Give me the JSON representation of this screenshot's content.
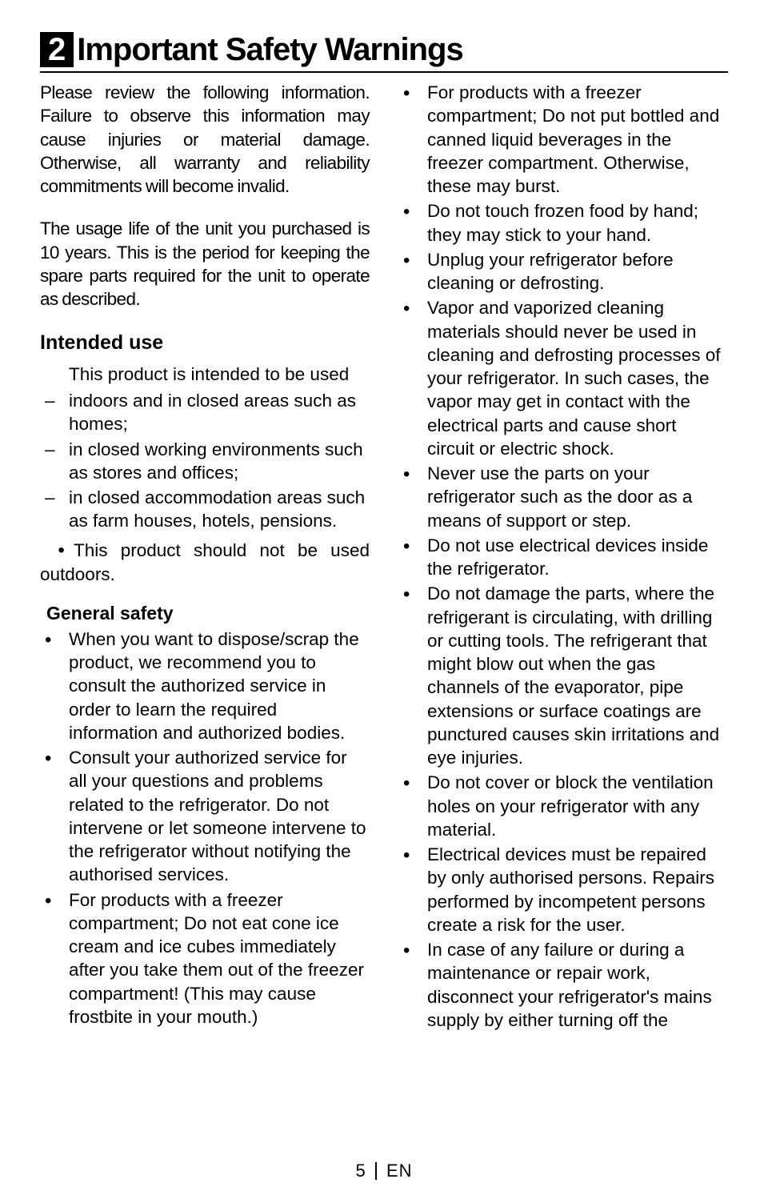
{
  "header": {
    "section_number": "2",
    "section_title": "Important Safety Warnings"
  },
  "left_column": {
    "intro_para": "Please review the following information. Failure to observe this information may cause injuries or material damage. Otherwise, all warranty and reliability commitments will become invalid.",
    "usage_para": "The usage life of the unit you purchased is 10 years. This is the period for keeping the spare parts required for the unit to operate as described.",
    "intended_use_heading": "Intended use",
    "intended_lead": "This product is intended to be used",
    "intended_items": [
      "indoors and in closed areas such as homes;",
      "in closed working environments such as stores and offices;",
      "in closed accommodation areas such as farm houses, hotels, pensions."
    ],
    "outdoors_line": "This product should not be used outdoors.",
    "general_safety_heading": "General safety",
    "general_items": [
      "When you want to dispose/scrap the product, we recommend you to consult the authorized service in order to learn the required information and authorized bodies.",
      "Consult your authorized service for all your questions and problems related to the refrigerator. Do not intervene or let someone intervene to the refrigerator without notifying the authorised services.",
      "For products with a freezer compartment; Do not eat cone ice cream and ice cubes immediately after you take them out of the freezer compartment! (This may cause frostbite in your mouth.)"
    ]
  },
  "right_column": {
    "items": [
      "For products with a freezer compartment; Do not put bottled and canned liquid beverages in the freezer compartment. Otherwise, these may burst.",
      "Do not touch frozen food by hand; they may stick to your hand.",
      "Unplug your refrigerator before cleaning or defrosting.",
      "Vapor and vaporized cleaning materials should never be used in cleaning and defrosting processes of your refrigerator. In such cases, the vapor may get in contact with the electrical parts and cause short circuit or electric shock.",
      "Never use the parts on your refrigerator such as the door as a means of support or step.",
      "Do not use electrical devices inside the refrigerator.",
      "Do not damage the parts, where the refrigerant is circulating, with drilling or cutting tools. The refrigerant that might blow out when the gas channels of the evaporator, pipe extensions or surface coatings are punctured causes skin irritations and eye injuries.",
      "Do not cover or block the ventilation holes on your refrigerator with any material.",
      "Electrical devices must be repaired by only authorised persons. Repairs performed by incompetent persons create a risk for the user.",
      "In case of any failure or during a maintenance or repair work, disconnect your refrigerator's mains supply by either turning off the"
    ]
  },
  "footer": {
    "page_number": "5",
    "language": "EN"
  }
}
